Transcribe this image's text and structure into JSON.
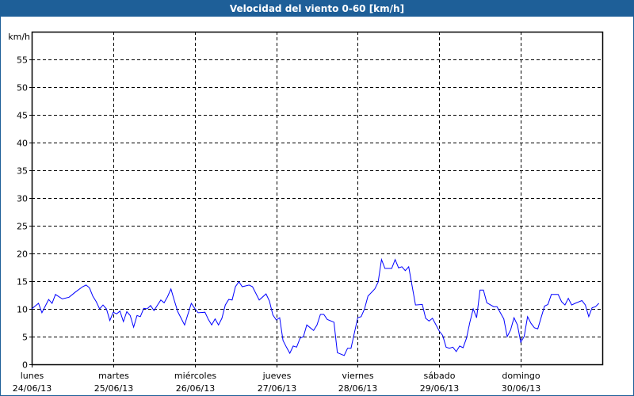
{
  "window": {
    "title": "Velocidad del viento 0-60 [km/h]"
  },
  "chart_data": {
    "type": "line",
    "title": "Velocidad del viento 0-60 [km/h]",
    "ylabel": "km/h",
    "xlabel": "",
    "ylim": [
      0,
      60
    ],
    "yticks": [
      0,
      5,
      10,
      15,
      20,
      25,
      30,
      35,
      40,
      45,
      50,
      55
    ],
    "grid": true,
    "line_color": "#0000ff",
    "x_ticks": [
      {
        "day": "lunes",
        "date": "24/06/13"
      },
      {
        "day": "martes",
        "date": "25/06/13"
      },
      {
        "day": "miércoles",
        "date": "26/06/13"
      },
      {
        "day": "jueves",
        "date": "27/06/13"
      },
      {
        "day": "viernes",
        "date": "28/06/13"
      },
      {
        "day": "sábado",
        "date": "29/06/13"
      },
      {
        "day": "domingo",
        "date": "30/06/13"
      }
    ],
    "series": [
      {
        "days": [
          {
            "date": "24/06/13",
            "hours": [
              0,
              2,
              3,
              5,
              6,
              7,
              9,
              11,
              12,
              13,
              15,
              16,
              17,
              18,
              19,
              20,
              21,
              22,
              23
            ],
            "values": [
              10.0,
              11.0,
              9.3,
              11.7,
              11.0,
              12.6,
              11.8,
              12.1,
              12.6,
              13.1,
              14.0,
              14.3,
              13.8,
              12.3,
              11.3,
              10.0,
              10.7,
              10.0,
              7.9
            ]
          },
          {
            "date": "25/06/13",
            "hours": [
              0,
              1,
              2,
              3,
              4,
              5,
              6,
              7,
              8,
              9,
              10,
              11,
              12,
              14,
              15,
              16,
              17,
              18,
              19,
              21,
              23
            ],
            "values": [
              9.4,
              9.1,
              9.6,
              7.7,
              9.5,
              8.8,
              6.7,
              8.8,
              8.6,
              10.1,
              10.0,
              10.6,
              9.7,
              11.6,
              11.1,
              12.2,
              13.6,
              11.5,
              9.5,
              7.1,
              11.0
            ]
          },
          {
            "date": "26/06/13",
            "hours": [
              0,
              1,
              3,
              4,
              5,
              6,
              7,
              8,
              9,
              10,
              11,
              12,
              13,
              14,
              16,
              17,
              19,
              21,
              22,
              23
            ],
            "values": [
              10.1,
              9.3,
              9.4,
              8.1,
              7.1,
              8.2,
              7.1,
              8.3,
              10.7,
              11.7,
              11.6,
              14.0,
              14.9,
              14.0,
              14.3,
              14.0,
              11.6,
              12.7,
              11.4,
              8.9
            ]
          },
          {
            "date": "27/06/13",
            "hours": [
              0,
              1,
              2,
              3,
              4,
              5,
              6,
              7,
              8,
              9,
              11,
              12,
              13,
              14,
              15,
              17,
              18,
              20,
              21,
              22
            ],
            "values": [
              8.0,
              8.4,
              4.3,
              3.1,
              2.0,
              3.3,
              3.1,
              4.7,
              5.0,
              7.1,
              6.1,
              7.1,
              9.0,
              9.0,
              8.1,
              7.6,
              2.1,
              1.6,
              2.9,
              2.9
            ]
          },
          {
            "date": "28/06/13",
            "hours": [
              0,
              1,
              2,
              3,
              5,
              6,
              7,
              8,
              10,
              11,
              12,
              13,
              14,
              15,
              17,
              19,
              20,
              21,
              22
            ],
            "values": [
              8.4,
              8.6,
              10.0,
              12.3,
              13.6,
              14.8,
              18.9,
              17.3,
              17.3,
              18.9,
              17.4,
              17.6,
              16.9,
              17.6,
              10.7,
              10.8,
              8.3,
              7.8,
              8.3
            ]
          },
          {
            "date": "29/06/13",
            "hours": [
              0,
              1,
              2,
              3,
              4,
              5,
              6,
              7,
              8,
              9,
              10,
              11,
              12,
              13,
              14,
              16,
              17,
              19,
              20,
              21,
              22,
              23
            ],
            "values": [
              6.0,
              5.2,
              3.1,
              2.9,
              3.1,
              2.3,
              3.3,
              3.0,
              4.7,
              7.6,
              10.0,
              8.4,
              13.4,
              13.4,
              11.1,
              10.4,
              10.4,
              8.2,
              5.0,
              6.2,
              8.4,
              7.1
            ]
          },
          {
            "date": "30/06/13",
            "hours": [
              0,
              1,
              2,
              3,
              4,
              5,
              7,
              8,
              9,
              11,
              12,
              13,
              14,
              15,
              16,
              18,
              19,
              20,
              21,
              22,
              23
            ],
            "values": [
              4.0,
              5.0,
              8.6,
              7.4,
              6.6,
              6.4,
              10.5,
              10.8,
              12.6,
              12.6,
              11.3,
              10.7,
              11.9,
              10.7,
              11.0,
              11.5,
              10.7,
              8.6,
              10.2,
              10.4,
              11.0
            ]
          }
        ]
      }
    ]
  }
}
